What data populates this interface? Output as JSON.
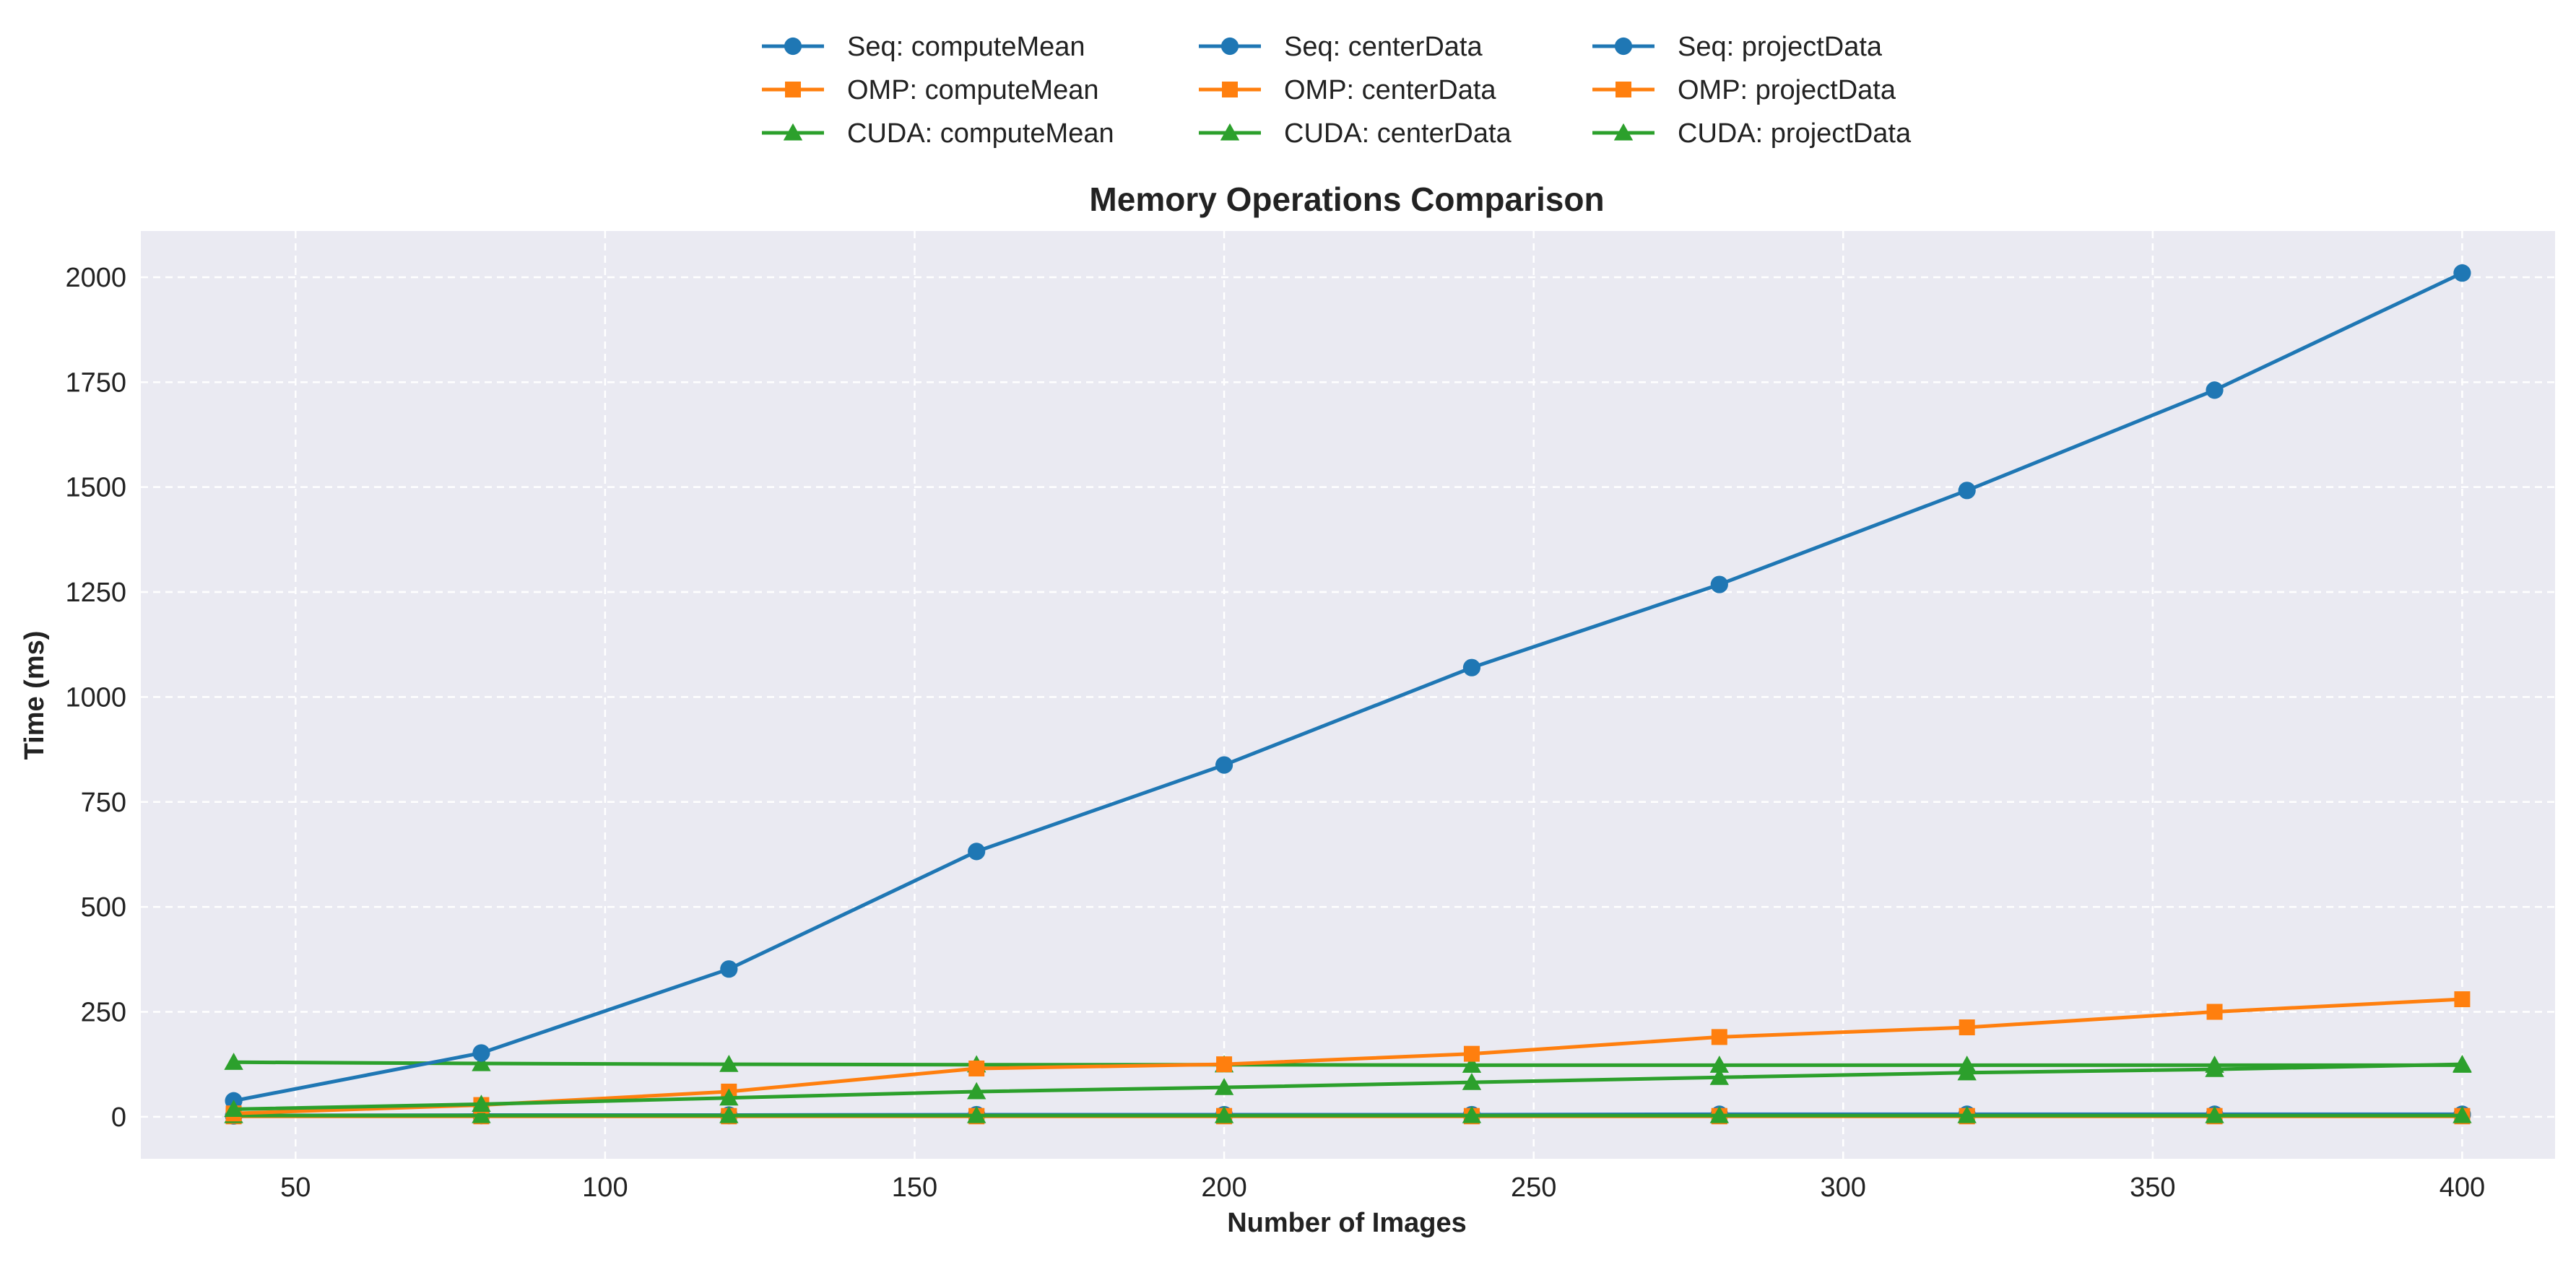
{
  "chart_data": {
    "type": "line",
    "title": "Memory Operations Comparison",
    "xlabel": "Number of Images",
    "ylabel": "Time (ms)",
    "xlim": [
      25,
      415
    ],
    "ylim": [
      -100,
      2110
    ],
    "x_ticks": [
      50,
      100,
      150,
      200,
      250,
      300,
      350,
      400
    ],
    "y_ticks": [
      0,
      250,
      500,
      750,
      1000,
      1250,
      1500,
      1750,
      2000
    ],
    "grid": true,
    "legend_placement": "top-center",
    "x": [
      40,
      80,
      120,
      160,
      200,
      240,
      280,
      320,
      360,
      400
    ],
    "series": [
      {
        "name": "Seq: computeMean",
        "color": "#1f77b4",
        "marker": "circle",
        "values": [
          2,
          3,
          3,
          4,
          4,
          4,
          5,
          5,
          5,
          5
        ]
      },
      {
        "name": "OMP: computeMean",
        "color": "#ff7f0e",
        "marker": "square",
        "values": [
          1,
          1,
          1,
          1,
          1,
          1,
          1,
          1,
          1,
          1
        ]
      },
      {
        "name": "CUDA: computeMean",
        "color": "#2ca02c",
        "marker": "triangle",
        "values": [
          130,
          127,
          125,
          124,
          124,
          123,
          123,
          123,
          123,
          123
        ]
      },
      {
        "name": "Seq: centerData",
        "color": "#1f77b4",
        "marker": "circle",
        "values": [
          3,
          4,
          4,
          5,
          5,
          5,
          6,
          6,
          6,
          6
        ]
      },
      {
        "name": "OMP: centerData",
        "color": "#ff7f0e",
        "marker": "square",
        "values": [
          2,
          2,
          2,
          2,
          2,
          2,
          2,
          2,
          2,
          2
        ]
      },
      {
        "name": "CUDA: centerData",
        "color": "#2ca02c",
        "marker": "triangle",
        "values": [
          3,
          3,
          3,
          3,
          3,
          3,
          3,
          3,
          3,
          3
        ]
      },
      {
        "name": "Seq: projectData",
        "color": "#1f77b4",
        "marker": "circle",
        "values": [
          38,
          152,
          352,
          632,
          838,
          1070,
          1268,
          1492,
          1731,
          2010
        ]
      },
      {
        "name": "OMP: projectData",
        "color": "#ff7f0e",
        "marker": "square",
        "values": [
          8,
          28,
          60,
          115,
          125,
          150,
          190,
          213,
          250,
          280
        ]
      },
      {
        "name": "CUDA: projectData",
        "color": "#2ca02c",
        "marker": "triangle",
        "values": [
          18,
          30,
          45,
          60,
          70,
          82,
          94,
          105,
          113,
          125
        ]
      }
    ]
  }
}
